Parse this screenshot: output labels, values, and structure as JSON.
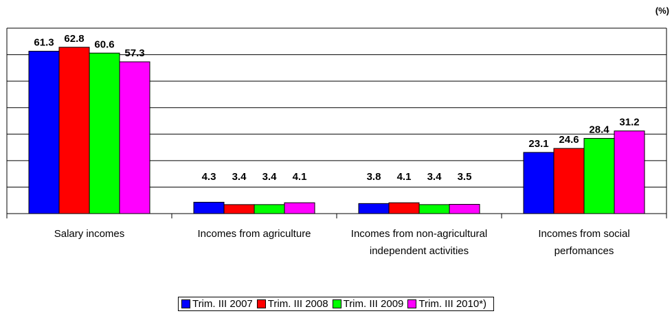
{
  "chart_data": {
    "type": "bar",
    "unit_label": "(%)",
    "categories": [
      "Salary incomes",
      "Incomes from agriculture",
      "Incomes from non-agricultural independent activities",
      "Incomes from social perfomances"
    ],
    "series": [
      {
        "name": "Trim. III 2007",
        "color": "#0000ff",
        "values": [
          61.3,
          4.3,
          3.8,
          23.1
        ]
      },
      {
        "name": "Trim. III 2008",
        "color": "#ff0000",
        "values": [
          62.8,
          3.4,
          4.1,
          24.6
        ]
      },
      {
        "name": "Trim. III 2009",
        "color": "#00ff00",
        "values": [
          60.6,
          3.4,
          3.4,
          28.4
        ]
      },
      {
        "name": "Trim. III 2010*)",
        "color": "#ff00ff",
        "values": [
          57.3,
          4.1,
          3.5,
          31.2
        ]
      }
    ],
    "ylim": [
      0,
      70
    ],
    "yticks": [
      0,
      10,
      20,
      30,
      40,
      50,
      60,
      70
    ],
    "grid": true
  }
}
